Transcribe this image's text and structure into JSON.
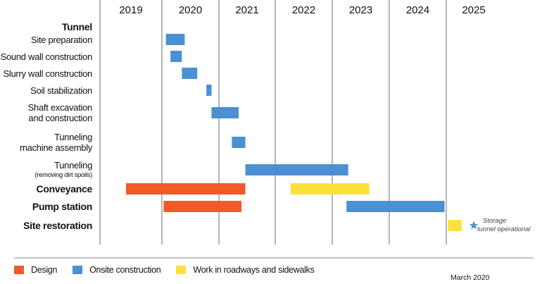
{
  "chart_data": {
    "type": "gantt",
    "years": [
      "2019",
      "2020",
      "2021",
      "2022",
      "2023",
      "2024",
      "2025"
    ],
    "x_range": [
      2019.0,
      2026.2
    ],
    "tasks": [
      {
        "label": "Tunnel",
        "bold": true,
        "bars": []
      },
      {
        "label": "Site preparation",
        "bars": [
          {
            "start": 2020.07,
            "end": 2020.4,
            "category": "onsite"
          }
        ]
      },
      {
        "label": "Sound wall construction",
        "bars": [
          {
            "start": 2020.15,
            "end": 2020.35,
            "category": "onsite"
          }
        ]
      },
      {
        "label": "Slurry wall construction",
        "bars": [
          {
            "start": 2020.35,
            "end": 2020.62,
            "category": "onsite"
          }
        ]
      },
      {
        "label": "Soil stabilization",
        "bars": [
          {
            "start": 2020.78,
            "end": 2020.87,
            "category": "onsite"
          }
        ]
      },
      {
        "label": [
          "Shaft excavation",
          "and construction"
        ],
        "bars": [
          {
            "start": 2020.87,
            "end": 2021.35,
            "category": "onsite"
          }
        ]
      },
      {
        "label": [
          "Tunneling",
          "machine assembly"
        ],
        "bars": [
          {
            "start": 2021.23,
            "end": 2021.47,
            "category": "onsite"
          }
        ]
      },
      {
        "label": [
          "Tunneling",
          "(removing dirt spoils)"
        ],
        "bars": [
          {
            "start": 2021.47,
            "end": 2023.28,
            "category": "onsite"
          }
        ]
      },
      {
        "label": "Conveyance",
        "bold": true,
        "bars": [
          {
            "start": 2019.42,
            "end": 2021.47,
            "category": "design"
          },
          {
            "start": 2022.27,
            "end": 2023.65,
            "category": "roadways"
          }
        ]
      },
      {
        "label": "Pump station",
        "bold": true,
        "bars": [
          {
            "start": 2020.03,
            "end": 2021.4,
            "category": "design"
          },
          {
            "start": 2023.25,
            "end": 2024.97,
            "category": "onsite"
          }
        ]
      },
      {
        "label": "Site restoration",
        "bold": true,
        "bars": [
          {
            "start": 2025.03,
            "end": 2025.28,
            "category": "roadways"
          }
        ]
      }
    ],
    "milestone": {
      "x": 2025.5,
      "row": "Site restoration",
      "label": [
        "Storage",
        "tunnel operational"
      ]
    }
  },
  "legend": [
    {
      "label": "Design",
      "color": "#f05a28"
    },
    {
      "label": "Onsite construction",
      "color": "#4a90d2"
    },
    {
      "label": "Work in roadways and sidewalks",
      "color": "#fbe13a"
    }
  ],
  "colors": {
    "design": "#f05a28",
    "onsite": "#4a90d2",
    "roadways": "#fbe13a",
    "milestone": "#4a90d2"
  },
  "date_note": "March 2020"
}
